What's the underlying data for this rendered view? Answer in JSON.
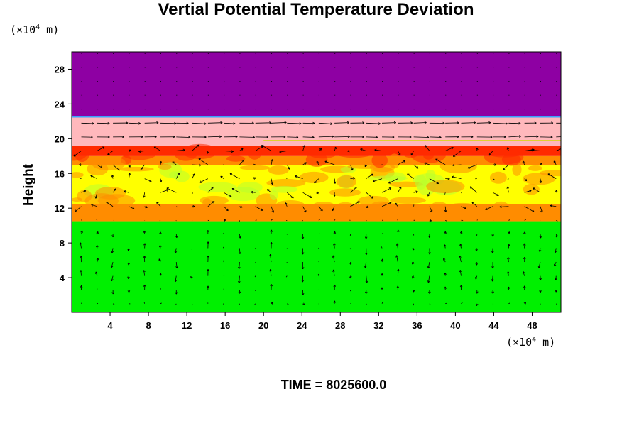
{
  "chart_data": {
    "type": "heatmap",
    "title": "Vertial Potential Temperature Deviation",
    "ylabel": "Height",
    "x_unit": {
      "prefix": "(×10",
      "exp": "4",
      "suffix": " m)"
    },
    "y_unit": {
      "prefix": "(×10",
      "exp": "4",
      "suffix": " m)"
    },
    "xlim": [
      0,
      51
    ],
    "ylim": [
      0,
      30
    ],
    "xticks": [
      4,
      8,
      12,
      16,
      20,
      24,
      28,
      32,
      36,
      40,
      44,
      48
    ],
    "yticks": [
      4,
      8,
      12,
      16,
      20,
      24,
      28
    ],
    "time_label": "TIME = 8025600.0",
    "colors": {
      "top": "#8e00a3",
      "pink": "#ffb8bc",
      "red": "#ff2a00",
      "orange": "#ff8c00",
      "yellow": "#ffff00",
      "green": "#00f000"
    },
    "bands": [
      {
        "color": "green",
        "y0": 0,
        "y1": 10.5
      },
      {
        "color": "orange",
        "y0": 10.5,
        "y1": 12.5
      },
      {
        "color": "yellow",
        "y0": 12.5,
        "y1": 17
      },
      {
        "color": "orange",
        "y0": 17,
        "y1": 18
      },
      {
        "color": "red",
        "y0": 18,
        "y1": 19.2
      },
      {
        "color": "pink",
        "y0": 19.2,
        "y1": 22.5
      },
      {
        "color": "top",
        "y0": 22.5,
        "y1": 30
      }
    ],
    "vector_field": "wind arrows overlaid on the full domain"
  }
}
